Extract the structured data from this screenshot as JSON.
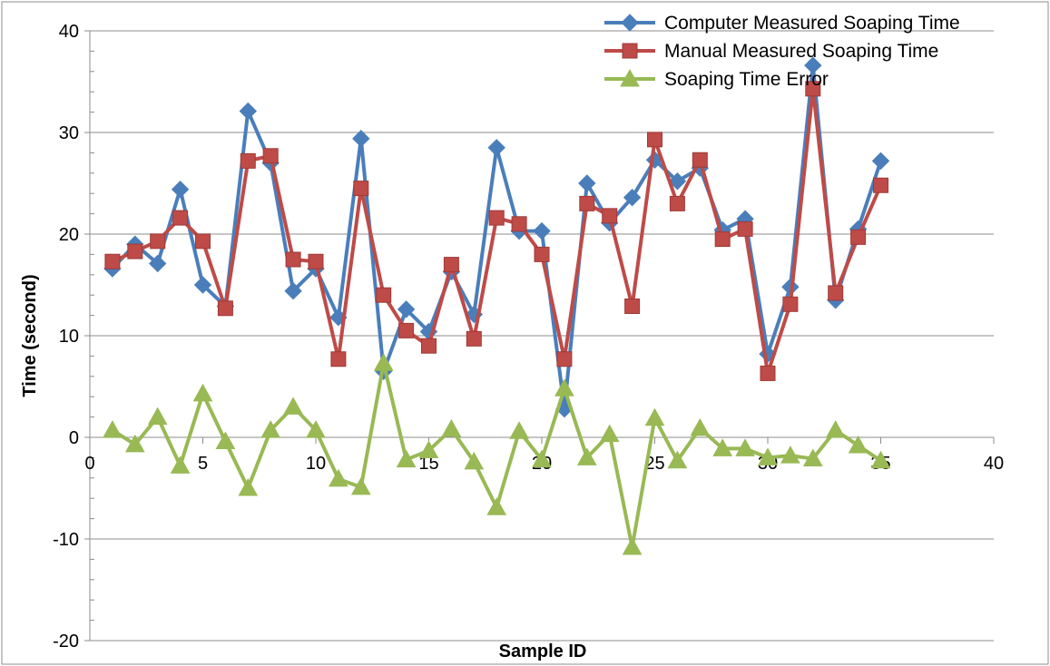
{
  "chart_data": {
    "type": "line",
    "xlabel": "Sample ID",
    "ylabel": "Time (second)",
    "xlim": [
      0,
      40
    ],
    "ylim": [
      -20,
      40
    ],
    "xticks": [
      0,
      5,
      10,
      15,
      20,
      25,
      30,
      35,
      40
    ],
    "yticks": [
      -20,
      -10,
      0,
      10,
      20,
      30,
      40
    ],
    "grid": "horizontal",
    "legend_position": "top-right",
    "x": [
      1,
      2,
      3,
      4,
      5,
      6,
      7,
      8,
      9,
      10,
      11,
      12,
      13,
      14,
      15,
      16,
      17,
      18,
      19,
      20,
      21,
      22,
      23,
      24,
      25,
      26,
      27,
      28,
      29,
      30,
      31,
      32,
      33,
      34,
      35
    ],
    "series": [
      {
        "name": "Computer Measured Soaping Time",
        "color": "#4a7ebb",
        "marker": "diamond",
        "values": [
          16.6,
          19.0,
          17.1,
          24.4,
          15.0,
          12.9,
          32.1,
          27.0,
          14.4,
          16.6,
          11.8,
          29.4,
          6.5,
          12.6,
          10.4,
          16.3,
          12.1,
          28.5,
          20.3,
          20.3,
          2.8,
          25.0,
          21.1,
          23.6,
          27.3,
          25.2,
          26.5,
          20.4,
          21.5,
          8.2,
          14.8,
          36.6,
          13.5,
          20.5,
          27.2
        ]
      },
      {
        "name": "Manual Measured Soaping Time",
        "color": "#be4b48",
        "marker": "square",
        "values": [
          17.3,
          18.3,
          19.3,
          21.6,
          19.3,
          12.7,
          27.2,
          27.7,
          17.5,
          17.3,
          7.7,
          24.5,
          14.0,
          10.5,
          9.0,
          17.0,
          9.7,
          21.6,
          21.0,
          18.0,
          7.7,
          23.0,
          21.8,
          12.9,
          29.3,
          23.0,
          27.3,
          19.5,
          20.5,
          6.3,
          13.1,
          34.3,
          14.2,
          19.7,
          24.8
        ]
      },
      {
        "name": "Soaping Time Error",
        "color": "#98b954",
        "marker": "triangle",
        "values": [
          0.7,
          -0.7,
          2.0,
          -2.8,
          4.3,
          -0.4,
          -5.0,
          0.7,
          3.0,
          0.7,
          -4.1,
          -4.9,
          7.3,
          -2.2,
          -1.3,
          0.8,
          -2.4,
          -6.9,
          0.6,
          -2.2,
          4.8,
          -2.0,
          0.3,
          -10.8,
          1.9,
          -2.3,
          0.9,
          -1.1,
          -1.1,
          -2.0,
          -1.8,
          -2.1,
          0.7,
          -0.8,
          -2.3
        ]
      }
    ]
  }
}
